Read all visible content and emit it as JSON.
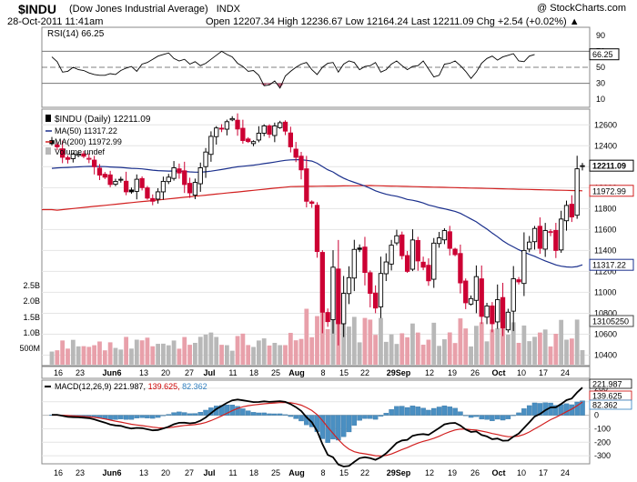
{
  "header": {
    "symbol": "$INDU",
    "name": "(Dow Jones Industrial Average)",
    "exchange": "INDX",
    "date": "28-Oct-2011 11:41am",
    "quote": "Open 12207.34  High 12236.67  Low 12164.24  Last 12211.09  Chg +2.54 (+0.02%) ▲",
    "watermark": "@ StockCharts.com"
  },
  "colors": {
    "up": "#000000",
    "down": "#cc0033",
    "ma50": "#1a2f8c",
    "ma200": "#d22020",
    "vol_up": "#b8b8b8",
    "vol_down": "#e8a0aa",
    "hist": "#4a8fc2",
    "grid": "#e4e4e4"
  },
  "chart_data": [
    {
      "type": "line",
      "panel": "rsi",
      "legend": "RSI(14) 66.25",
      "ylim": [
        0,
        100
      ],
      "y_ticks": [
        90,
        70,
        50,
        30,
        10
      ],
      "reference_lines": [
        70,
        50,
        30
      ],
      "last_value_label": "66.25",
      "values": [
        63,
        57,
        44,
        45,
        50,
        47,
        46,
        43,
        41,
        40,
        40,
        42,
        41,
        46,
        49,
        51,
        45,
        54,
        56,
        60,
        64,
        66,
        68,
        61,
        58,
        60,
        54,
        57,
        52,
        55,
        60,
        65,
        70,
        66,
        63,
        55,
        51,
        45,
        46,
        40,
        27,
        28,
        33,
        24,
        39,
        45,
        50,
        54,
        56,
        47,
        41,
        50,
        55,
        56,
        44,
        54,
        58,
        56,
        47,
        51,
        52,
        56,
        44,
        47,
        54,
        58,
        52,
        47,
        51,
        52,
        58,
        48,
        38,
        40,
        54,
        55,
        58,
        52,
        45,
        36,
        44,
        55,
        61,
        64,
        59,
        63,
        65,
        67,
        58,
        57,
        64,
        66
      ]
    },
    {
      "type": "candlestick",
      "panel": "price",
      "legend": [
        "$INDU (Daily) 12211.09",
        "MA(50) 11317.22",
        "MA(200) 11972.99",
        "Volume undef"
      ],
      "ylim": [
        10300,
        12750
      ],
      "y_ticks": [
        12600,
        12400,
        12200,
        12000,
        11800,
        11600,
        11400,
        11200,
        11000,
        10800,
        10600,
        10400
      ],
      "last_labels": {
        "price": "12211.09",
        "ma200": "11972.99",
        "ma50": "11317.22",
        "volume": "13105250"
      },
      "volume_scale_labels": [
        "2.5B",
        "2.0B",
        "1.5B",
        "1.0B",
        "500M"
      ],
      "close": [
        12420,
        12390,
        12290,
        12270,
        12320,
        12320,
        12300,
        12280,
        12200,
        12120,
        12100,
        12030,
        12060,
        12080,
        11960,
        11960,
        12080,
        12000,
        11900,
        11870,
        11960,
        12060,
        12100,
        12190,
        12140,
        12030,
        11950,
        12050,
        12190,
        12340,
        12490,
        12570,
        12560,
        12630,
        12660,
        12560,
        12450,
        12440,
        12440,
        12520,
        12590,
        12510,
        12590,
        12620,
        12540,
        12390,
        12290,
        12170,
        11870,
        11850,
        11390,
        10810,
        10720,
        11240,
        10700,
        10990,
        11140,
        11410,
        11410,
        11190,
        10990,
        10850,
        11180,
        11290,
        11450,
        11540,
        11350,
        11200,
        11500,
        11300,
        11240,
        11110,
        11470,
        11520,
        11590,
        11420,
        11360,
        11090,
        10900,
        10940,
        11150,
        10770,
        10870,
        10700,
        10930,
        10660,
        10810,
        11130,
        11100,
        11400,
        11480,
        11610,
        11420,
        11590,
        11580,
        11400,
        11700,
        11830,
        11720,
        12180,
        12210
      ]
    },
    {
      "type": "line",
      "panel": "macd",
      "legend": [
        "MACD(12,26,9) 221.987, ",
        "139.625, ",
        "82.362"
      ],
      "ylim": [
        -360,
        260
      ],
      "y_ticks": [
        200,
        100,
        0,
        -100,
        -200,
        -300
      ],
      "last_labels": {
        "macd": "221.987",
        "signal": "139.625",
        "hist": "82.362"
      }
    },
    {
      "type": "axis",
      "x_tick_labels": [
        "16",
        "23",
        "Jun6",
        "13",
        "20",
        "27",
        "Jul",
        "11",
        "18",
        "25",
        "Aug",
        "8",
        "15",
        "22",
        "29Sep",
        "12",
        "19",
        "26",
        "Oct",
        "10",
        "17",
        "24"
      ]
    }
  ]
}
